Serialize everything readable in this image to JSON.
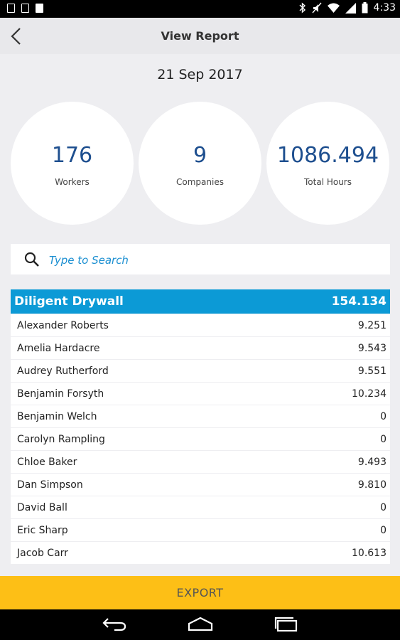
{
  "status": {
    "time": "4:33"
  },
  "header": {
    "title": "View Report"
  },
  "report": {
    "date": "21 Sep 2017"
  },
  "stats": [
    {
      "value": "176",
      "label": "Workers"
    },
    {
      "value": "9",
      "label": "Companies"
    },
    {
      "value": "1086.494",
      "label": "Total Hours"
    }
  ],
  "search": {
    "placeholder": "Type to Search"
  },
  "group": {
    "name": "Diligent Drywall",
    "total": "154.134",
    "rows": [
      {
        "name": "Alexander Roberts",
        "hours": "9.251"
      },
      {
        "name": "Amelia Hardacre",
        "hours": "9.543"
      },
      {
        "name": "Audrey Rutherford",
        "hours": "9.551"
      },
      {
        "name": "Benjamin Forsyth",
        "hours": "10.234"
      },
      {
        "name": "Benjamin Welch",
        "hours": "0"
      },
      {
        "name": "Carolyn Rampling",
        "hours": "0"
      },
      {
        "name": "Chloe Baker",
        "hours": "9.493"
      },
      {
        "name": "Dan Simpson",
        "hours": "9.810"
      },
      {
        "name": "David Ball",
        "hours": "0"
      },
      {
        "name": "Eric Sharp",
        "hours": "0"
      },
      {
        "name": "Jacob Carr",
        "hours": "10.613"
      }
    ]
  },
  "footer": {
    "export_label": "EXPORT"
  },
  "colors": {
    "accent_blue": "#0c9ad6",
    "export_yellow": "#fdbf16",
    "stat_blue": "#1e4f8f"
  }
}
